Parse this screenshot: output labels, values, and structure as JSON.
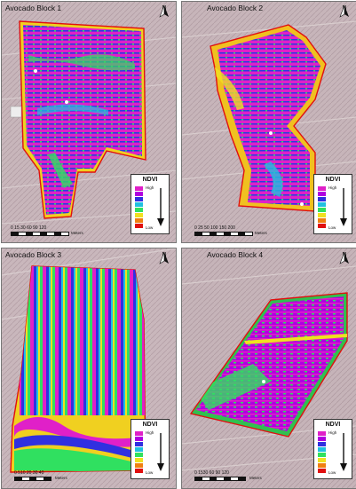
{
  "panels": [
    {
      "title": "Avocado Block 1",
      "north": "N",
      "scale_numbers": "0 15 30    60    90   120",
      "scale_unit": "Meters",
      "legend_title": "NDVI",
      "legend_high": "High",
      "legend_low": "Low"
    },
    {
      "title": "Avocado Block 2",
      "north": "N",
      "scale_numbers": "0  25 50    100   150   200",
      "scale_unit": "Meters",
      "legend_title": "NDVI",
      "legend_high": "High",
      "legend_low": "Low"
    },
    {
      "title": "Avocado Block 3",
      "north": "N",
      "scale_numbers": "0 510 20  30  40",
      "scale_unit": "Meters",
      "legend_title": "NDVI",
      "legend_high": "High",
      "legend_low": "Low"
    },
    {
      "title": "Avocado Block 4",
      "north": "N",
      "scale_numbers": "0 1530  60   90   120",
      "scale_unit": "Meters",
      "legend_title": "NDVI",
      "legend_high": "High",
      "legend_low": "Low"
    }
  ],
  "legend_colors": [
    "#e020c8",
    "#b000e0",
    "#3030e0",
    "#20c0e0",
    "#30e060",
    "#f0e020",
    "#f08010",
    "#e01010"
  ],
  "background_color": "#c6b4b9"
}
